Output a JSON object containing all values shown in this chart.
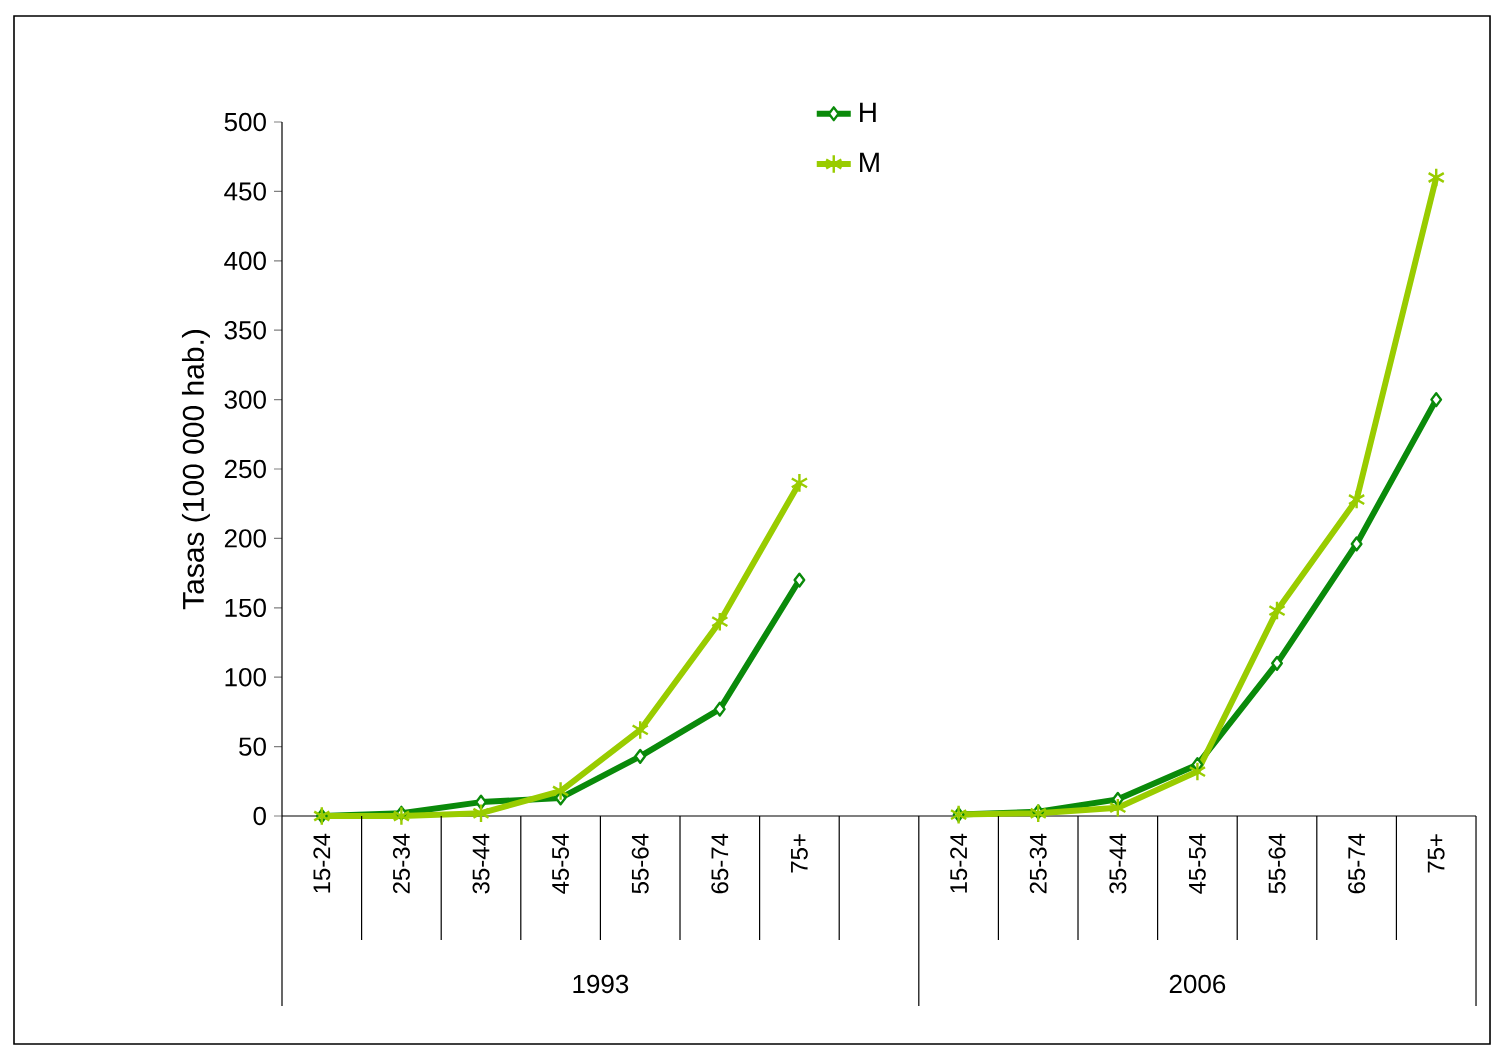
{
  "chart_data": {
    "type": "line",
    "ylabel": "Tasas (100 000 hab.)",
    "categories": [
      "15-24",
      "25-34",
      "35-44",
      "45-54",
      "55-64",
      "65-74",
      "75+",
      null,
      "15-24",
      "25-34",
      "35-44",
      "45-54",
      "55-64",
      "65-74",
      "75+"
    ],
    "series": [
      {
        "name": "H",
        "color": "#0a8a0a",
        "marker": "diamond",
        "values": [
          0,
          2,
          10,
          13,
          43,
          77,
          170,
          null,
          1,
          3,
          12,
          37,
          110,
          196,
          300
        ]
      },
      {
        "name": "M",
        "color": "#99cc00",
        "marker": "cross",
        "values": [
          0,
          0,
          2,
          18,
          62,
          140,
          240,
          null,
          1,
          2,
          6,
          32,
          148,
          228,
          460
        ]
      }
    ],
    "ylim": [
      0,
      500
    ],
    "yticks": [
      0,
      50,
      100,
      150,
      200,
      250,
      300,
      350,
      400,
      450,
      500
    ],
    "legend": "top",
    "line_style": "solid",
    "annotations": [
      "1993",
      "2006"
    ]
  }
}
